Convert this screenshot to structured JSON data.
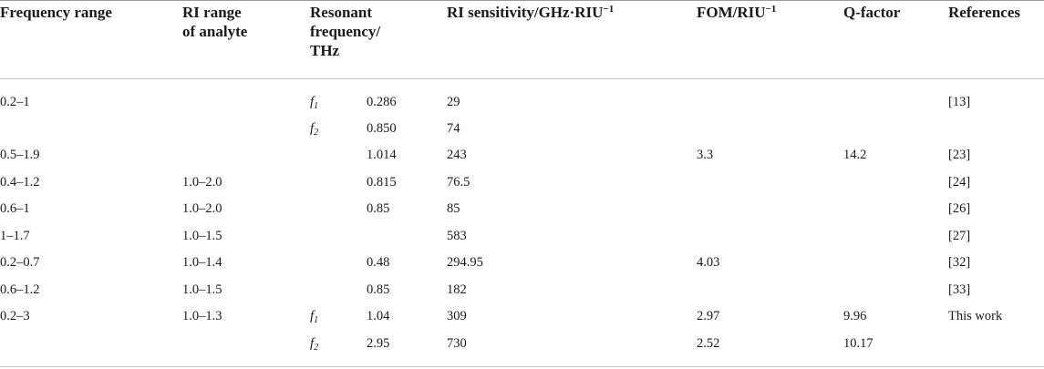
{
  "headers": {
    "freq_range": "Frequency range",
    "ri_range_line1": "RI range",
    "ri_range_line2": "of analyte",
    "resonant_line1": "Resonant",
    "resonant_line2": "frequency/",
    "resonant_line3": "THz",
    "sensitivity": "RI sensitivity/GHz·RIU",
    "sensitivity_sup": "−1",
    "fom": "FOM/RIU",
    "fom_sup": "−1",
    "qfactor": "Q-factor",
    "references": "References"
  },
  "rows": [
    {
      "freq": "0.2–1",
      "ri": "",
      "f_letter": "f",
      "f_sub": "1",
      "resfreq": "0.286",
      "sens": "29",
      "fom": "",
      "q": "",
      "ref": "[13]"
    },
    {
      "freq": "",
      "ri": "",
      "f_letter": "f",
      "f_sub": "2",
      "resfreq": "0.850",
      "sens": "74",
      "fom": "",
      "q": "",
      "ref": ""
    },
    {
      "freq": "0.5–1.9",
      "ri": "",
      "f_letter": "",
      "f_sub": "",
      "resfreq": "1.014",
      "sens": "243",
      "fom": "3.3",
      "q": "14.2",
      "ref": "[23]"
    },
    {
      "freq": "0.4–1.2",
      "ri": "1.0–2.0",
      "f_letter": "",
      "f_sub": "",
      "resfreq": "0.815",
      "sens": "76.5",
      "fom": "",
      "q": "",
      "ref": "[24]"
    },
    {
      "freq": "0.6–1",
      "ri": "1.0–2.0",
      "f_letter": "",
      "f_sub": "",
      "resfreq": "0.85",
      "sens": "85",
      "fom": "",
      "q": "",
      "ref": "[26]"
    },
    {
      "freq": "1–1.7",
      "ri": "1.0–1.5",
      "f_letter": "",
      "f_sub": "",
      "resfreq": "",
      "sens": "583",
      "fom": "",
      "q": "",
      "ref": "[27]"
    },
    {
      "freq": "0.2–0.7",
      "ri": "1.0–1.4",
      "f_letter": "",
      "f_sub": "",
      "resfreq": "0.48",
      "sens": "294.95",
      "fom": "4.03",
      "q": "",
      "ref": "[32]"
    },
    {
      "freq": "0.6–1.2",
      "ri": "1.0–1.5",
      "f_letter": "",
      "f_sub": "",
      "resfreq": "0.85",
      "sens": "182",
      "fom": "",
      "q": "",
      "ref": "[33]"
    },
    {
      "freq": "0.2–3",
      "ri": "1.0–1.3",
      "f_letter": "f",
      "f_sub": "1",
      "resfreq": "1.04",
      "sens": "309",
      "fom": "2.97",
      "q": "9.96",
      "ref": "This work"
    },
    {
      "freq": "",
      "ri": "",
      "f_letter": "f",
      "f_sub": "2",
      "resfreq": "2.95",
      "sens": "730",
      "fom": "2.52",
      "q": "10.17",
      "ref": ""
    }
  ]
}
